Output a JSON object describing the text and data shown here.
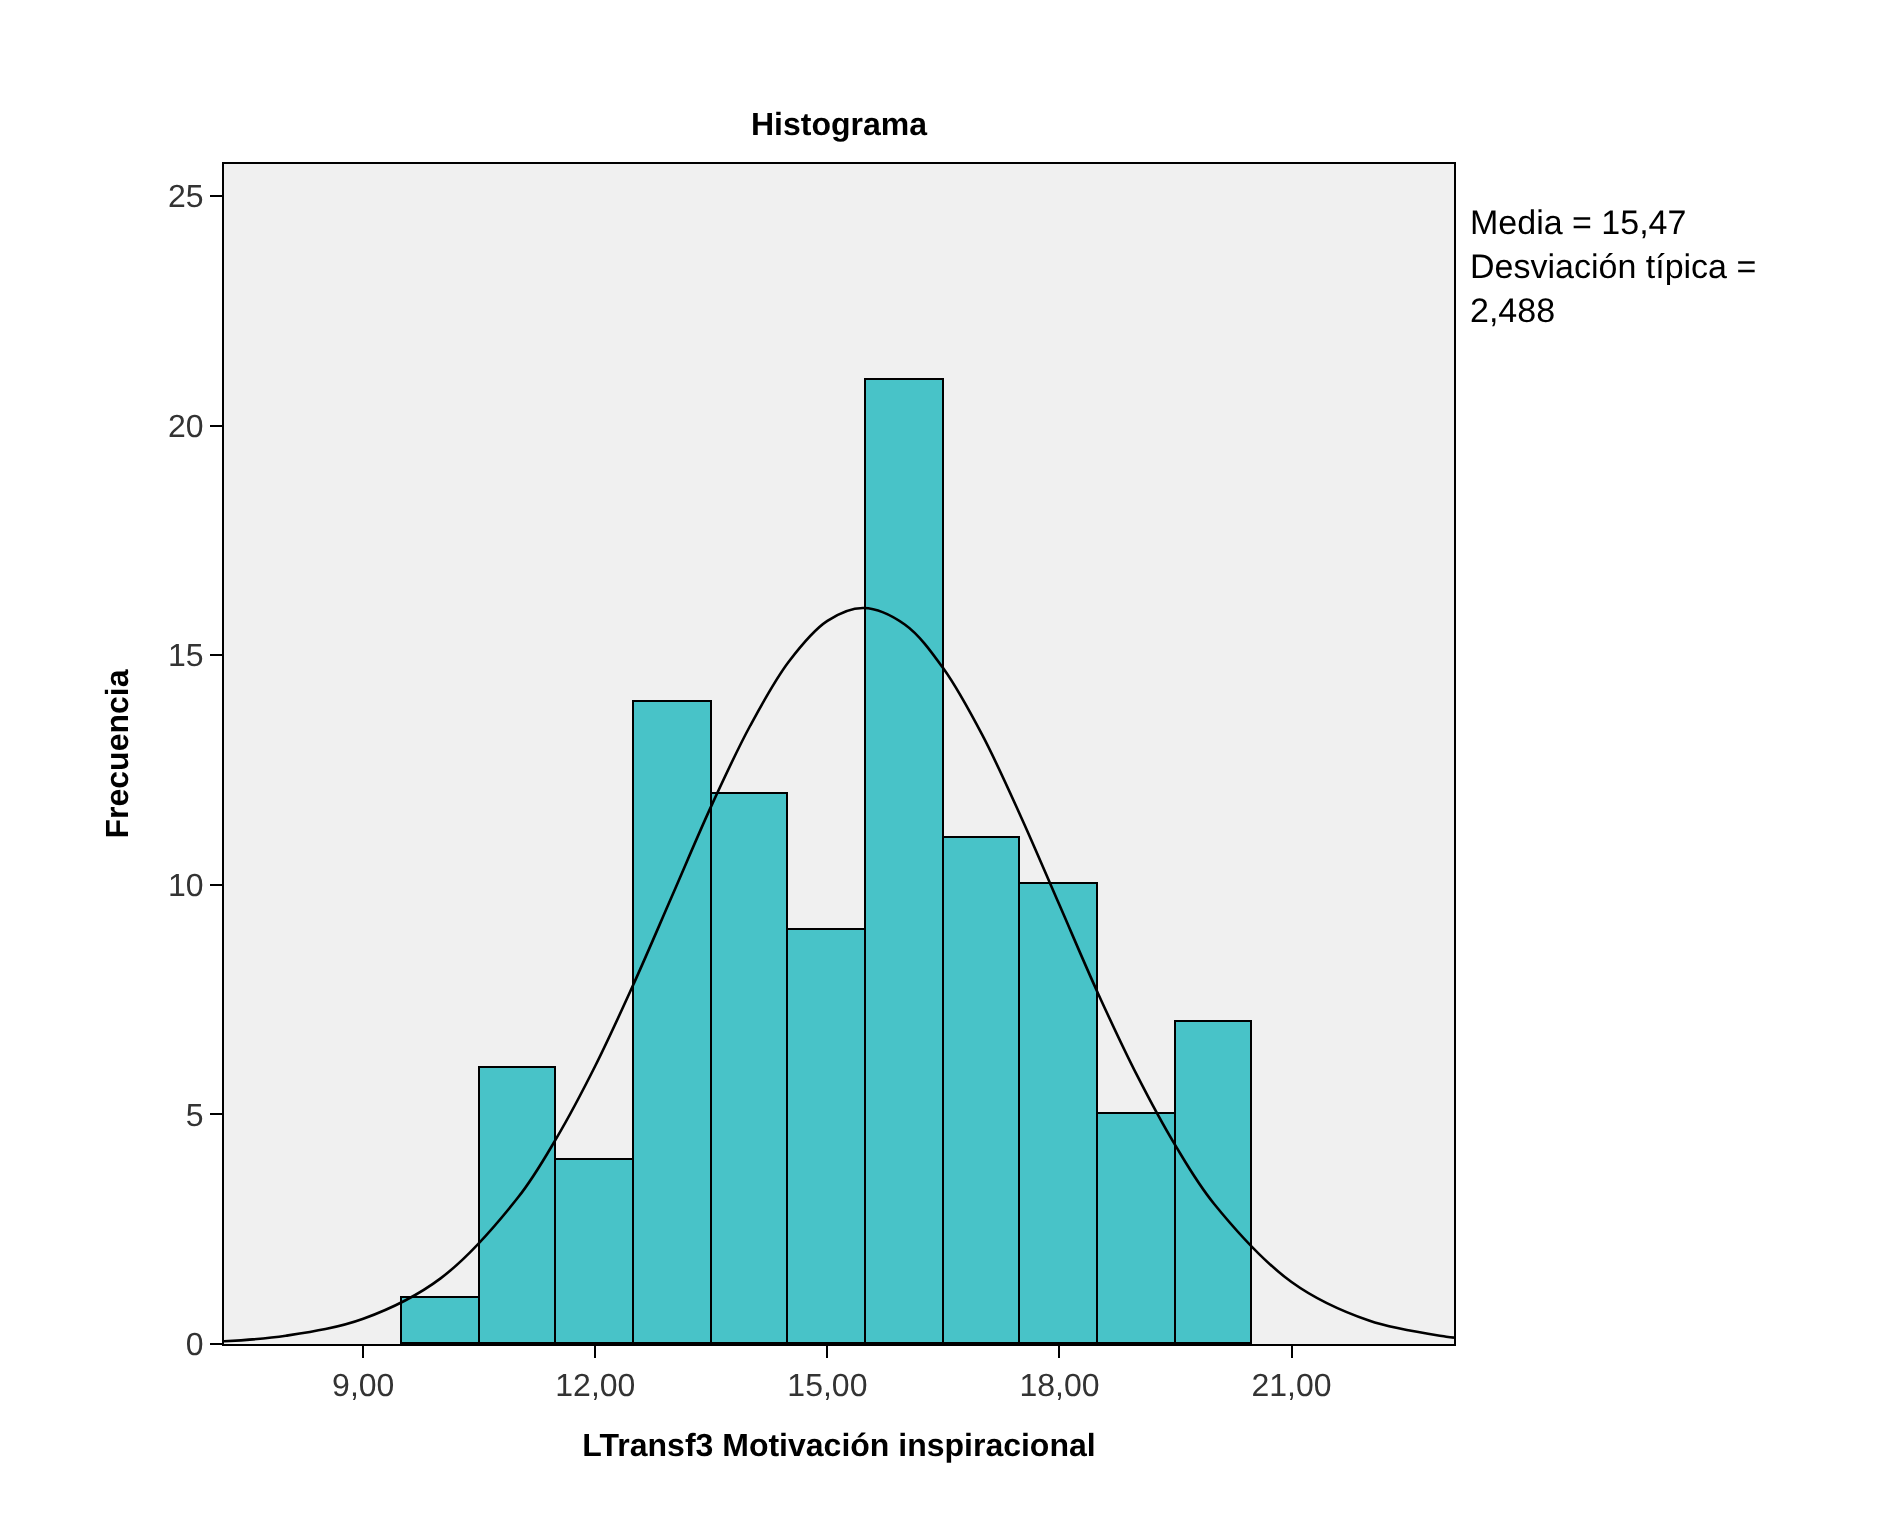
{
  "chart_data": {
    "type": "histogram",
    "title": "Histograma",
    "xlabel": "LTransf3 Motivación inspiracional",
    "ylabel": "Frecuencia",
    "annotations": [
      "Media = 15,47\nDesviación típica =\n2,488"
    ],
    "series": [
      {
        "color": "#48c3c8",
        "bins": [
          9.5,
          10.5,
          11.5,
          12.5,
          13.5,
          14.5,
          15.5,
          16.5,
          17.5,
          18.5,
          19.5,
          20.5
        ],
        "values": [
          1,
          6,
          4,
          14,
          12,
          9,
          21,
          11,
          10,
          5,
          7
        ]
      },
      {
        "type": "line",
        "color": "#000000",
        "x": [
          7.2,
          8,
          9,
          10,
          11,
          11.5,
          12,
          12.5,
          13,
          13.5,
          14,
          14.5,
          15,
          15.47,
          16,
          16.5,
          17,
          17.5,
          18,
          18.5,
          19,
          19.5,
          20,
          21,
          22,
          23,
          23.1
        ],
        "values": [
          0.06,
          0.18,
          0.55,
          1.43,
          3.19,
          4.49,
          6.06,
          7.86,
          9.79,
          11.72,
          13.46,
          14.86,
          15.75,
          16.03,
          15.67,
          14.71,
          13.27,
          11.49,
          9.56,
          7.63,
          5.86,
          4.32,
          3.05,
          1.35,
          0.51,
          0.16,
          0.14
        ]
      }
    ],
    "xlim": [
      7.2,
      23.1
    ],
    "ylim": [
      0,
      25.7
    ],
    "xticks": [
      {
        "value": 9,
        "label": "9,00"
      },
      {
        "value": 12,
        "label": "12,00"
      },
      {
        "value": 15,
        "label": "15,00"
      },
      {
        "value": 18,
        "label": "18,00"
      },
      {
        "value": 21,
        "label": "21,00"
      }
    ],
    "yticks": [
      0,
      5,
      10,
      15,
      20,
      25
    ],
    "grid": false,
    "marker": "none",
    "line_style": "solid"
  }
}
